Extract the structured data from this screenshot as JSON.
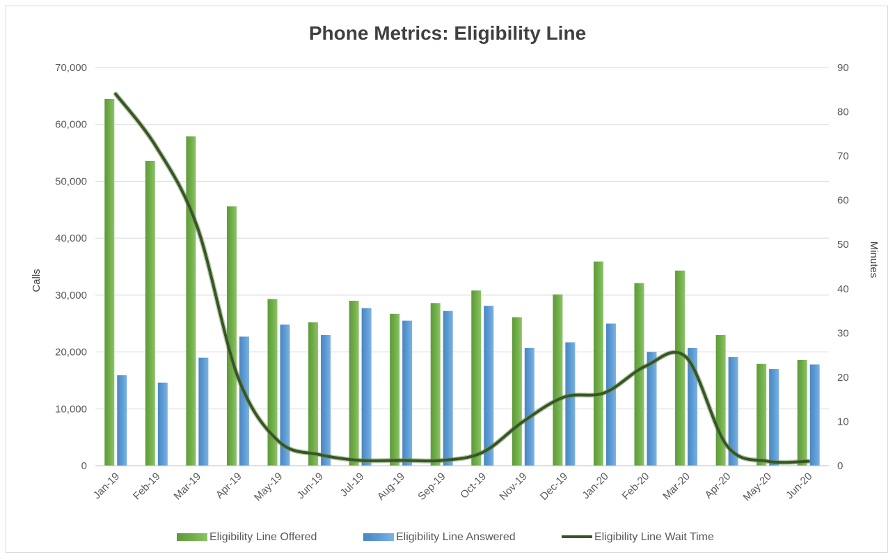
{
  "chart_data": {
    "type": "bar",
    "title": "Phone Metrics: Eligibility Line",
    "categories": [
      "Jan-19",
      "Feb-19",
      "Mar-19",
      "Apr-19",
      "May-19",
      "Jun-19",
      "Jul-19",
      "Aug-19",
      "Sep-19",
      "Oct-19",
      "Nov-19",
      "Dec-19",
      "Jan-20",
      "Feb-20",
      "Mar-20",
      "Apr-20",
      "May-20",
      "Jun-20"
    ],
    "ylabel": "Calls",
    "y2label": "Minutes",
    "ylim": [
      0,
      70000
    ],
    "y2lim": [
      0,
      90
    ],
    "yticks": [
      "0",
      "10,000",
      "20,000",
      "30,000",
      "40,000",
      "50,000",
      "60,000",
      "70,000"
    ],
    "y2ticks": [
      "0",
      "10",
      "20",
      "30",
      "40",
      "50",
      "60",
      "70",
      "80",
      "90"
    ],
    "grid": true,
    "legend_position": "bottom",
    "colors": {
      "offered": "#70ad47",
      "answered": "#5b9bd5",
      "wait": "#375623"
    },
    "series": [
      {
        "name": "Eligibility Line Offered",
        "type": "bar",
        "axis": "left",
        "values": [
          64500,
          53600,
          57900,
          45600,
          29300,
          25200,
          29000,
          26700,
          28600,
          30800,
          26100,
          30100,
          35900,
          32100,
          34300,
          23000,
          17900,
          18600
        ]
      },
      {
        "name": "Eligibility Line Answered",
        "type": "bar",
        "axis": "left",
        "values": [
          15900,
          14600,
          19000,
          22700,
          24800,
          23000,
          27700,
          25500,
          27200,
          28100,
          20700,
          21700,
          25000,
          20000,
          20700,
          19100,
          17000,
          17800
        ]
      },
      {
        "name": "Eligibility Line Wait Time",
        "type": "line",
        "axis": "right",
        "values": [
          84,
          72,
          54,
          20,
          5.5,
          2.5,
          1.2,
          1.2,
          1.2,
          3,
          10,
          15.5,
          16.5,
          22.5,
          24.5,
          4.5,
          1,
          1
        ]
      }
    ]
  }
}
